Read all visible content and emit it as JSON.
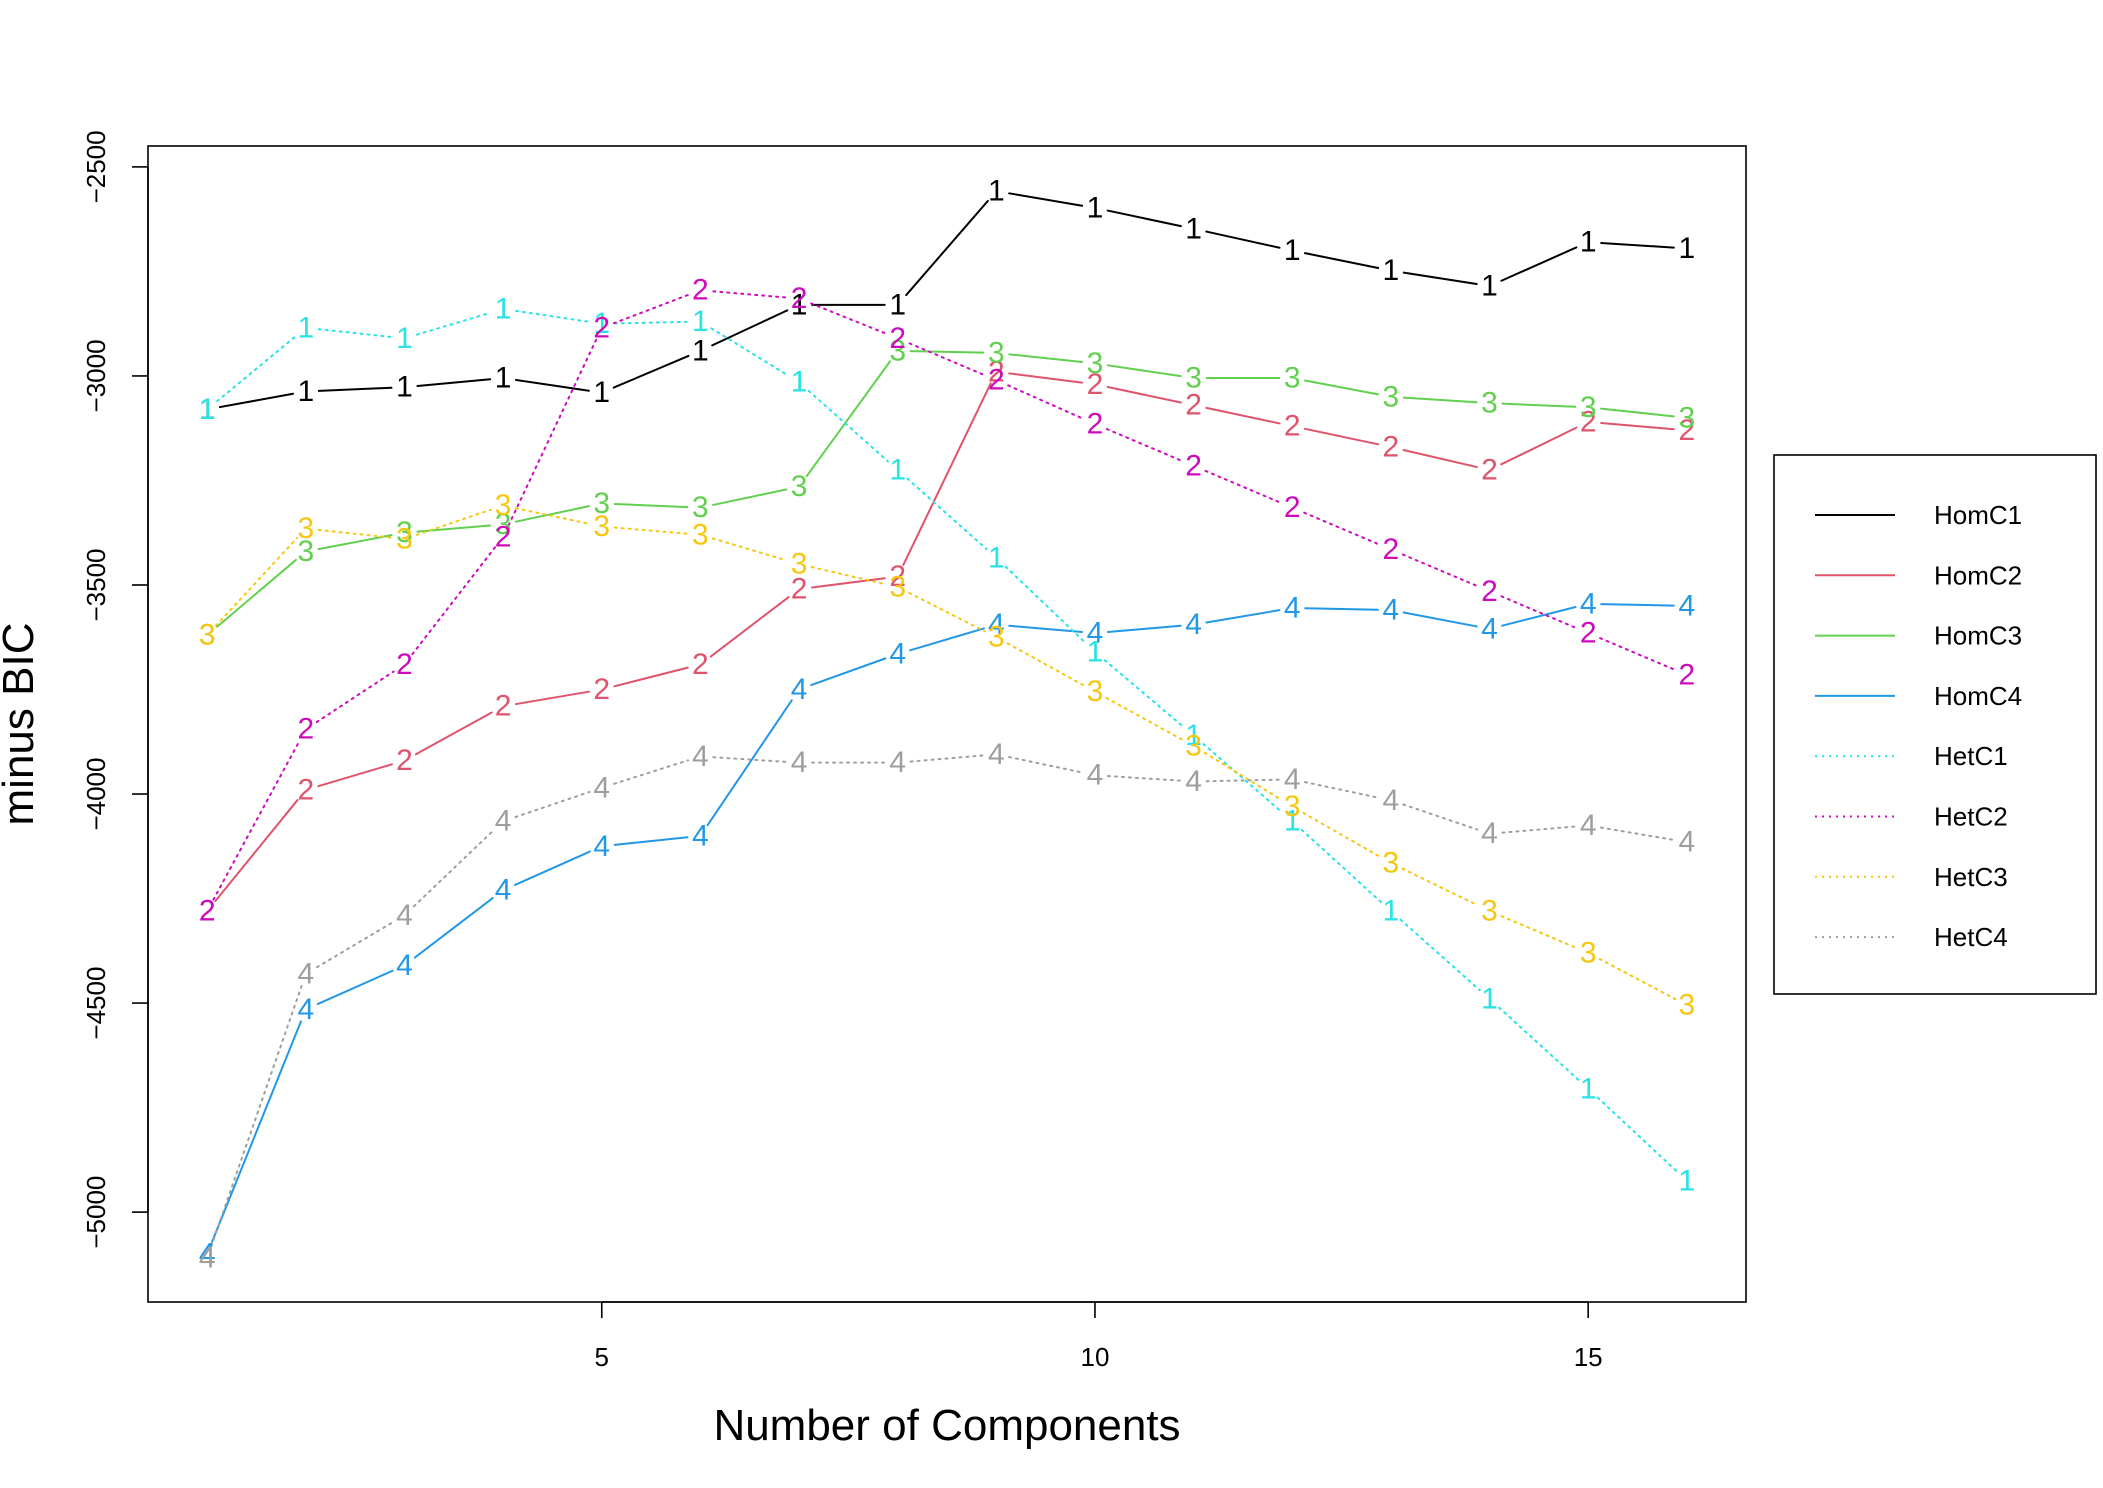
{
  "chart_data": {
    "type": "line",
    "title": "",
    "xlabel": "Number of Components",
    "ylabel": "minus BIC",
    "xlim": [
      0.4,
      16.6
    ],
    "ylim": [
      -5215,
      -2450
    ],
    "xticks": [
      5,
      10,
      15
    ],
    "yticks": [
      -2500,
      -3000,
      -3500,
      -4000,
      -4500,
      -5000
    ],
    "x": [
      1,
      2,
      3,
      4,
      5,
      6,
      7,
      8,
      9,
      10,
      11,
      12,
      13,
      14,
      15,
      16
    ],
    "legend_position": "right",
    "grid": false,
    "series": [
      {
        "name": "HomC1",
        "symbol": "1",
        "color": "#000000",
        "line": "solid",
        "values": [
          -3080,
          -3037,
          -3027,
          -3005,
          -3040,
          -2940,
          -2830,
          -2830,
          -2558,
          -2598,
          -2648,
          -2700,
          -2748,
          -2785,
          -2680,
          -2695
        ]
      },
      {
        "name": "HomC2",
        "symbol": "2",
        "color": "#DF536B",
        "line": "solid",
        "values": [
          -4280,
          -3990,
          -3920,
          -3790,
          -3750,
          -3690,
          -3510,
          -3480,
          -2990,
          -3020,
          -3070,
          -3120,
          -3170,
          -3225,
          -3110,
          -3130
        ]
      },
      {
        "name": "HomC3",
        "symbol": "3",
        "color": "#61D04F",
        "line": "solid",
        "values": [
          -3620,
          -3420,
          -3375,
          -3355,
          -3305,
          -3315,
          -3265,
          -2940,
          -2945,
          -2970,
          -3005,
          -3005,
          -3050,
          -3065,
          -3075,
          -3100
        ]
      },
      {
        "name": "HomC4",
        "symbol": "4",
        "color": "#2297E6",
        "line": "solid",
        "values": [
          -5100,
          -4515,
          -4410,
          -4230,
          -4125,
          -4100,
          -3750,
          -3665,
          -3595,
          -3615,
          -3595,
          -3555,
          -3560,
          -3605,
          -3545,
          -3550
        ]
      },
      {
        "name": "HetC1",
        "symbol": "1",
        "color": "#28E2E5",
        "line": "dotted",
        "values": [
          -3080,
          -2885,
          -2910,
          -2840,
          -2875,
          -2870,
          -3015,
          -3225,
          -3435,
          -3660,
          -3860,
          -4065,
          -4280,
          -4490,
          -4705,
          -4925
        ]
      },
      {
        "name": "HetC2",
        "symbol": "2",
        "color": "#CD0BBC",
        "line": "dotted",
        "values": [
          -4280,
          -3845,
          -3690,
          -3385,
          -2885,
          -2795,
          -2815,
          -2910,
          -3010,
          -3115,
          -3215,
          -3315,
          -3415,
          -3515,
          -3615,
          -3715
        ]
      },
      {
        "name": "HetC3",
        "symbol": "3",
        "color": "#F5C710",
        "line": "dotted",
        "values": [
          -3620,
          -3365,
          -3390,
          -3310,
          -3360,
          -3380,
          -3450,
          -3505,
          -3625,
          -3755,
          -3885,
          -4030,
          -4165,
          -4280,
          -4380,
          -4505
        ]
      },
      {
        "name": "HetC4",
        "symbol": "4",
        "color": "#9E9E9E",
        "line": "dotted",
        "values": [
          -5110,
          -4430,
          -4290,
          -4065,
          -3985,
          -3910,
          -3925,
          -3925,
          -3905,
          -3955,
          -3970,
          -3965,
          -4015,
          -4095,
          -4075,
          -4115
        ]
      }
    ]
  }
}
